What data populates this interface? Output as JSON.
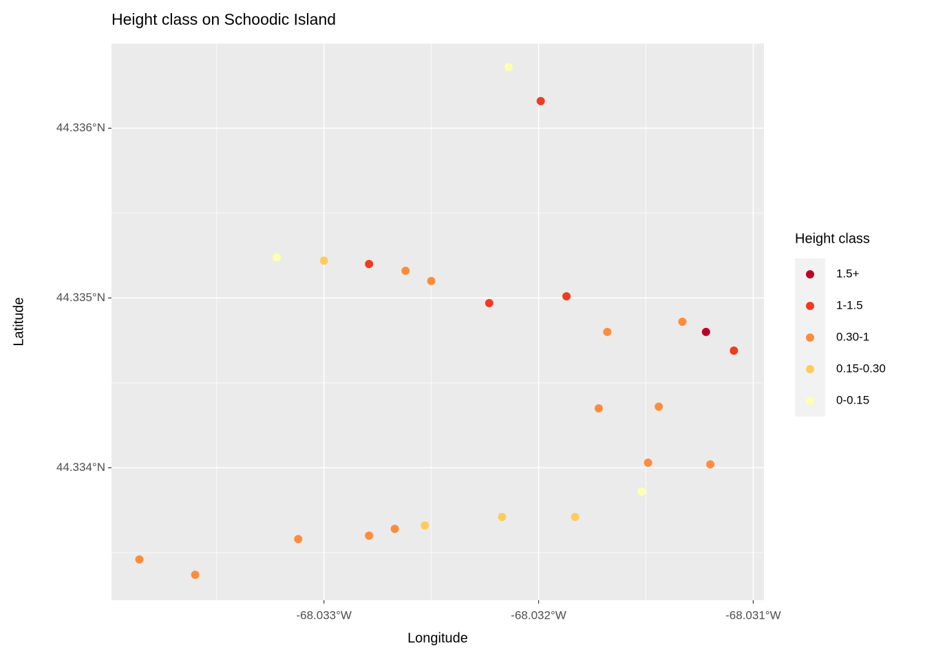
{
  "chart_data": {
    "type": "scatter",
    "title": "Height class on Schoodic Island",
    "x_label": "Longitude",
    "y_label": "Latitude",
    "legend_title": "Height class",
    "legend_position": "right",
    "grid": true,
    "xlim": [
      -68.03399,
      -68.03095
    ],
    "ylim": [
      44.33322,
      44.3365
    ],
    "xticks": [
      {
        "value": -68.033,
        "label": "-68.033°W"
      },
      {
        "value": -68.032,
        "label": "-68.032°W"
      },
      {
        "value": -68.031,
        "label": "-68.031°W"
      }
    ],
    "yticks": [
      {
        "value": 44.334,
        "label": "44.334°N"
      },
      {
        "value": 44.335,
        "label": "44.335°N"
      },
      {
        "value": 44.336,
        "label": "44.336°N"
      }
    ],
    "series": [
      {
        "name": "1.5+",
        "color": "#bd0026",
        "x": [
          -68.03122
        ],
        "y": [
          44.3348
        ]
      },
      {
        "name": "1-1.5",
        "color": "#f03b20",
        "x": [
          -68.03199,
          -68.03279,
          -68.03223,
          -68.03187,
          -68.03109
        ],
        "y": [
          44.33616,
          44.3352,
          44.33497,
          44.33501,
          44.33469
        ]
      },
      {
        "name": "0.30-1",
        "color": "#fd8d3c",
        "x": [
          -68.03262,
          -68.0325,
          -68.03168,
          -68.03133,
          -68.03172,
          -68.03144,
          -68.03149,
          -68.0312,
          -68.03267,
          -68.03279,
          -68.03312,
          -68.03386,
          -68.0336
        ],
        "y": [
          44.33516,
          44.3351,
          44.3348,
          44.33486,
          44.33435,
          44.33436,
          44.33403,
          44.33402,
          44.33364,
          44.3336,
          44.33358,
          44.33346,
          44.33337
        ]
      },
      {
        "name": "0.15-0.30",
        "color": "#fecc5c",
        "x": [
          -68.033,
          -68.03217,
          -68.03183,
          -68.03253
        ],
        "y": [
          44.33522,
          44.33371,
          44.33371,
          44.33366
        ]
      },
      {
        "name": "0-0.15",
        "color": "#ffffb2",
        "x": [
          -68.03214,
          -68.03322,
          -68.03152
        ],
        "y": [
          44.33636,
          44.33524,
          44.33386
        ]
      }
    ]
  }
}
